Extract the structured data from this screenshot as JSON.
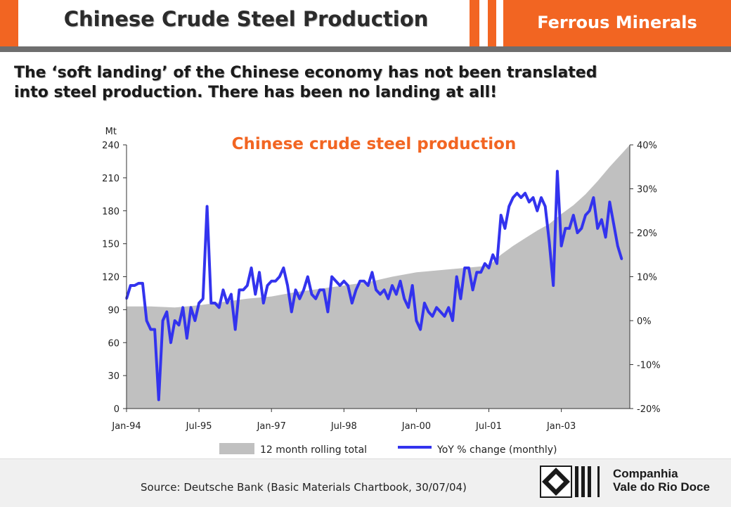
{
  "header": {
    "title": "Chinese Crude Steel Production",
    "section": "Ferrous Minerals"
  },
  "subtitle": {
    "line1": "The ‘soft landing’ of the Chinese economy has not been translated",
    "line2": "into steel production.  There has been no landing at all!"
  },
  "footer": {
    "source": "Source: Deutsche Bank (Basic Materials Chartbook, 30/07/04)",
    "company_line1": "Companhia",
    "company_line2": "Vale do Rio Doce"
  },
  "colors": {
    "accent": "#f26522",
    "area": "#c0c0c0",
    "line": "#3333ee",
    "title": "#f26522"
  },
  "chart_data": {
    "type": "line",
    "title": "Chinese crude steel production",
    "ylabel_left": "Mt",
    "xlim": [
      "1994-01",
      "2004-06"
    ],
    "ylim_left": [
      0,
      240
    ],
    "ylim_right": [
      -0.2,
      0.4
    ],
    "x_tick_labels": [
      "Jan-94",
      "Jul-95",
      "Jan-97",
      "Jul-98",
      "Jan-00",
      "Jul-01",
      "Jan-03"
    ],
    "y_left_tick_labels": [
      "0",
      "30",
      "60",
      "90",
      "120",
      "150",
      "180",
      "210",
      "240"
    ],
    "y_right_tick_labels": [
      "-20%",
      "-10%",
      "0%",
      "10%",
      "20%",
      "30%",
      "40%"
    ],
    "legend_position": "bottom",
    "legend": [
      "12 month rolling total",
      "YoY % change (monthly)"
    ],
    "grid": false,
    "series": [
      {
        "name": "12 month rolling total",
        "kind": "area",
        "axis": "left",
        "unit": "Mt",
        "points": [
          [
            "1994-01",
            93
          ],
          [
            "1994-07",
            93
          ],
          [
            "1995-01",
            92
          ],
          [
            "1995-07",
            94
          ],
          [
            "1996-01",
            97
          ],
          [
            "1996-07",
            100
          ],
          [
            "1997-01",
            102
          ],
          [
            "1997-07",
            106
          ],
          [
            "1998-01",
            109
          ],
          [
            "1998-07",
            112
          ],
          [
            "1999-01",
            115
          ],
          [
            "1999-07",
            120
          ],
          [
            "2000-01",
            124
          ],
          [
            "2000-07",
            126
          ],
          [
            "2001-01",
            128
          ],
          [
            "2001-07",
            130
          ],
          [
            "2001-10",
            140
          ],
          [
            "2002-01",
            148
          ],
          [
            "2002-04",
            155
          ],
          [
            "2002-07",
            162
          ],
          [
            "2002-10",
            168
          ],
          [
            "2003-01",
            177
          ],
          [
            "2003-04",
            185
          ],
          [
            "2003-07",
            195
          ],
          [
            "2003-10",
            207
          ],
          [
            "2004-01",
            220
          ],
          [
            "2004-06",
            240
          ]
        ]
      },
      {
        "name": "YoY % change (monthly)",
        "kind": "line",
        "axis": "right",
        "unit": "fraction",
        "points": [
          [
            "1994-01",
            0.05
          ],
          [
            "1994-02",
            0.08
          ],
          [
            "1994-03",
            0.08
          ],
          [
            "1994-04",
            0.085
          ],
          [
            "1994-05",
            0.085
          ],
          [
            "1994-06",
            0.0
          ],
          [
            "1994-07",
            -0.02
          ],
          [
            "1994-08",
            -0.02
          ],
          [
            "1994-09",
            -0.18
          ],
          [
            "1994-10",
            0.0
          ],
          [
            "1994-11",
            0.02
          ],
          [
            "1994-12",
            -0.05
          ],
          [
            "1995-01",
            0.0
          ],
          [
            "1995-02",
            -0.01
          ],
          [
            "1995-03",
            0.03
          ],
          [
            "1995-04",
            -0.04
          ],
          [
            "1995-05",
            0.03
          ],
          [
            "1995-06",
            0.0
          ],
          [
            "1995-07",
            0.04
          ],
          [
            "1995-08",
            0.05
          ],
          [
            "1995-09",
            0.26
          ],
          [
            "1995-10",
            0.04
          ],
          [
            "1995-11",
            0.04
          ],
          [
            "1995-12",
            0.03
          ],
          [
            "1996-01",
            0.07
          ],
          [
            "1996-02",
            0.04
          ],
          [
            "1996-03",
            0.06
          ],
          [
            "1996-04",
            -0.02
          ],
          [
            "1996-05",
            0.07
          ],
          [
            "1996-06",
            0.07
          ],
          [
            "1996-07",
            0.08
          ],
          [
            "1996-08",
            0.12
          ],
          [
            "1996-09",
            0.06
          ],
          [
            "1996-10",
            0.11
          ],
          [
            "1996-11",
            0.04
          ],
          [
            "1996-12",
            0.08
          ],
          [
            "1997-01",
            0.09
          ],
          [
            "1997-02",
            0.09
          ],
          [
            "1997-03",
            0.1
          ],
          [
            "1997-04",
            0.12
          ],
          [
            "1997-05",
            0.08
          ],
          [
            "1997-06",
            0.02
          ],
          [
            "1997-07",
            0.07
          ],
          [
            "1997-08",
            0.05
          ],
          [
            "1997-09",
            0.07
          ],
          [
            "1997-10",
            0.1
          ],
          [
            "1997-11",
            0.06
          ],
          [
            "1997-12",
            0.05
          ],
          [
            "1998-01",
            0.07
          ],
          [
            "1998-02",
            0.07
          ],
          [
            "1998-03",
            0.02
          ],
          [
            "1998-04",
            0.1
          ],
          [
            "1998-05",
            0.09
          ],
          [
            "1998-06",
            0.08
          ],
          [
            "1998-07",
            0.09
          ],
          [
            "1998-08",
            0.08
          ],
          [
            "1998-09",
            0.04
          ],
          [
            "1998-10",
            0.07
          ],
          [
            "1998-11",
            0.09
          ],
          [
            "1998-12",
            0.09
          ],
          [
            "1999-01",
            0.08
          ],
          [
            "1999-02",
            0.11
          ],
          [
            "1999-03",
            0.07
          ],
          [
            "1999-04",
            0.06
          ],
          [
            "1999-05",
            0.07
          ],
          [
            "1999-06",
            0.05
          ],
          [
            "1999-07",
            0.08
          ],
          [
            "1999-08",
            0.06
          ],
          [
            "1999-09",
            0.09
          ],
          [
            "1999-10",
            0.05
          ],
          [
            "1999-11",
            0.03
          ],
          [
            "1999-12",
            0.08
          ],
          [
            "2000-01",
            0.0
          ],
          [
            "2000-02",
            -0.02
          ],
          [
            "2000-03",
            0.04
          ],
          [
            "2000-04",
            0.02
          ],
          [
            "2000-05",
            0.01
          ],
          [
            "2000-06",
            0.03
          ],
          [
            "2000-07",
            0.02
          ],
          [
            "2000-08",
            0.01
          ],
          [
            "2000-09",
            0.03
          ],
          [
            "2000-10",
            0.0
          ],
          [
            "2000-11",
            0.1
          ],
          [
            "2000-12",
            0.05
          ],
          [
            "2001-01",
            0.12
          ],
          [
            "2001-02",
            0.12
          ],
          [
            "2001-03",
            0.07
          ],
          [
            "2001-04",
            0.11
          ],
          [
            "2001-05",
            0.11
          ],
          [
            "2001-06",
            0.13
          ],
          [
            "2001-07",
            0.12
          ],
          [
            "2001-08",
            0.15
          ],
          [
            "2001-09",
            0.13
          ],
          [
            "2001-10",
            0.24
          ],
          [
            "2001-11",
            0.21
          ],
          [
            "2001-12",
            0.26
          ],
          [
            "2002-01",
            0.28
          ],
          [
            "2002-02",
            0.29
          ],
          [
            "2002-03",
            0.28
          ],
          [
            "2002-04",
            0.29
          ],
          [
            "2002-05",
            0.27
          ],
          [
            "2002-06",
            0.28
          ],
          [
            "2002-07",
            0.25
          ],
          [
            "2002-08",
            0.28
          ],
          [
            "2002-09",
            0.26
          ],
          [
            "2002-10",
            0.18
          ],
          [
            "2002-11",
            0.08
          ],
          [
            "2002-12",
            0.34
          ],
          [
            "2003-01",
            0.17
          ],
          [
            "2003-02",
            0.21
          ],
          [
            "2003-03",
            0.21
          ],
          [
            "2003-04",
            0.24
          ],
          [
            "2003-05",
            0.2
          ],
          [
            "2003-06",
            0.21
          ],
          [
            "2003-07",
            0.24
          ],
          [
            "2003-08",
            0.25
          ],
          [
            "2003-09",
            0.28
          ],
          [
            "2003-10",
            0.21
          ],
          [
            "2003-11",
            0.23
          ],
          [
            "2003-12",
            0.19
          ],
          [
            "2004-01",
            0.27
          ],
          [
            "2004-02",
            0.22
          ],
          [
            "2004-03",
            0.17
          ],
          [
            "2004-04",
            0.14
          ]
        ]
      }
    ]
  }
}
